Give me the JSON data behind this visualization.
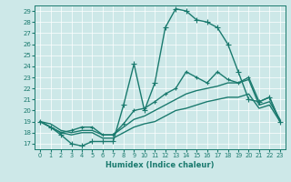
{
  "xlabel": "Humidex (Indice chaleur)",
  "background_color": "#cde8e8",
  "line_color": "#1a7a6e",
  "xlim": [
    -0.5,
    23.5
  ],
  "ylim": [
    16.5,
    29.5
  ],
  "xticks": [
    0,
    1,
    2,
    3,
    4,
    5,
    6,
    7,
    8,
    9,
    10,
    11,
    12,
    13,
    14,
    15,
    16,
    17,
    18,
    19,
    20,
    21,
    22,
    23
  ],
  "yticks": [
    17,
    18,
    19,
    20,
    21,
    22,
    23,
    24,
    25,
    26,
    27,
    28,
    29
  ],
  "series": [
    {
      "y": [
        19.0,
        18.5,
        17.8,
        17.0,
        16.8,
        17.2,
        17.2,
        17.2,
        20.5,
        24.2,
        20.0,
        22.5,
        27.5,
        29.2,
        29.0,
        28.2,
        28.0,
        27.5,
        26.0,
        23.5,
        21.0,
        20.8,
        21.2,
        19.0
      ],
      "marker": "+",
      "markersize": 4,
      "linewidth": 1.0,
      "linestyle": "-"
    },
    {
      "y": [
        19.0,
        18.5,
        18.0,
        18.2,
        18.5,
        18.5,
        17.8,
        17.8,
        18.8,
        20.0,
        20.2,
        20.8,
        21.5,
        22.0,
        23.5,
        23.0,
        22.5,
        23.5,
        22.8,
        22.5,
        23.0,
        20.8,
        21.2,
        19.0
      ],
      "marker": "+",
      "markersize": 3,
      "linewidth": 1.0,
      "linestyle": "-"
    },
    {
      "y": [
        19.0,
        18.8,
        18.2,
        18.0,
        18.2,
        18.2,
        17.8,
        17.8,
        18.5,
        19.2,
        19.5,
        20.0,
        20.5,
        21.0,
        21.5,
        21.8,
        22.0,
        22.2,
        22.5,
        22.5,
        22.8,
        20.5,
        20.8,
        19.2
      ],
      "marker": null,
      "markersize": 0,
      "linewidth": 1.0,
      "linestyle": "-"
    },
    {
      "y": [
        19.0,
        18.5,
        18.0,
        17.8,
        18.0,
        18.0,
        17.5,
        17.5,
        18.0,
        18.5,
        18.8,
        19.0,
        19.5,
        20.0,
        20.2,
        20.5,
        20.8,
        21.0,
        21.2,
        21.2,
        21.5,
        20.2,
        20.5,
        19.0
      ],
      "marker": null,
      "markersize": 0,
      "linewidth": 1.0,
      "linestyle": "-"
    }
  ]
}
